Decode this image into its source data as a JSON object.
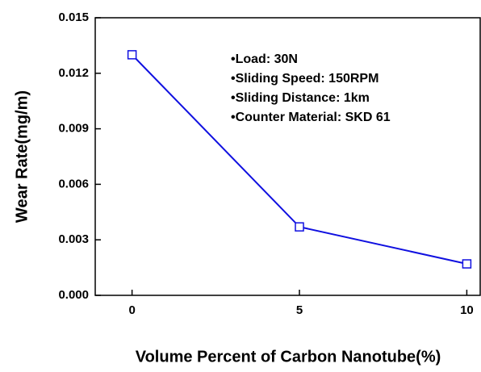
{
  "chart_data": {
    "type": "line",
    "x_label": "Volume Percent of Carbon Nanotube(%)",
    "y_label": "Wear Rate(mg/m)",
    "x": [
      0,
      5,
      10
    ],
    "series": [
      {
        "name": "Wear Rate",
        "color": "#1010e0",
        "values": [
          0.013,
          0.0037,
          0.0017
        ]
      }
    ],
    "xlim": [
      -1.1,
      10.4
    ],
    "xticks": [
      0,
      5,
      10
    ],
    "ylim": [
      0,
      0.015
    ],
    "yticks": [
      {
        "value": 0,
        "label": "0.000"
      },
      0.003,
      0.006,
      0.009,
      0.012,
      0.015
    ],
    "annotations": [
      "•Load: 30N",
      "•Sliding Speed: 150RPM",
      "•Sliding Distance: 1km",
      "•Counter Material: SKD 61"
    ],
    "marker": "square"
  }
}
